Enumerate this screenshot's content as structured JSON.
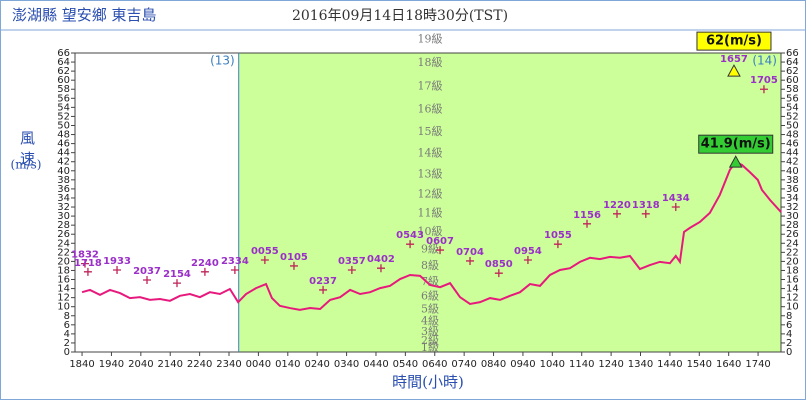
{
  "chart_data": {
    "type": "line",
    "title": "澎湖縣 望安鄉 東吉島",
    "subtitle": "2016年09月14日18時30分(TST)",
    "y_label": "風速",
    "y_unit": "(m/s)",
    "x_label": "時間(小時)",
    "day_boundary": 5.33,
    "day_labels": [
      "(13)",
      "(14)"
    ],
    "before_color": "#ffffff",
    "after_color": "#ccff99",
    "xlim": [
      -0.24,
      23.78
    ],
    "xticks": [
      {
        "value": 0,
        "label": "1840"
      },
      {
        "value": 1,
        "label": "1940"
      },
      {
        "value": 2,
        "label": "2040"
      },
      {
        "value": 3,
        "label": "2140"
      },
      {
        "value": 4,
        "label": "2240"
      },
      {
        "value": 5,
        "label": "2340"
      },
      {
        "value": 6,
        "label": "0040"
      },
      {
        "value": 7,
        "label": "0140"
      },
      {
        "value": 8,
        "label": "0240"
      },
      {
        "value": 9,
        "label": "0340"
      },
      {
        "value": 10,
        "label": "0440"
      },
      {
        "value": 11,
        "label": "0540"
      },
      {
        "value": 12,
        "label": "0640"
      },
      {
        "value": 13,
        "label": "0740"
      },
      {
        "value": 14,
        "label": "0840"
      },
      {
        "value": 15,
        "label": "0940"
      },
      {
        "value": 16,
        "label": "1040"
      },
      {
        "value": 17,
        "label": "1140"
      },
      {
        "value": 18,
        "label": "1240"
      },
      {
        "value": 19,
        "label": "1340"
      },
      {
        "value": 20,
        "label": "1440"
      },
      {
        "value": 21,
        "label": "1540"
      },
      {
        "value": 22,
        "label": "1640"
      },
      {
        "value": 23,
        "label": "1740"
      }
    ],
    "ylim": [
      0,
      66
    ],
    "yticks": [
      0,
      2,
      4,
      6,
      8,
      10,
      12,
      14,
      16,
      18,
      20,
      22,
      24,
      26,
      28,
      30,
      32,
      34,
      36,
      38,
      40,
      42,
      44,
      46,
      48,
      50,
      52,
      54,
      56,
      58,
      60,
      62,
      64,
      66
    ],
    "beaufort_levels": [
      {
        "label": "1級",
        "value": 0.9
      },
      {
        "label": "2級",
        "value": 2.45
      },
      {
        "label": "3級",
        "value": 4.4
      },
      {
        "label": "4級",
        "value": 6.7
      },
      {
        "label": "5級",
        "value": 9.35
      },
      {
        "label": "6級",
        "value": 12.3
      },
      {
        "label": "7級",
        "value": 15.5
      },
      {
        "label": "8級",
        "value": 18.95
      },
      {
        "label": "9級",
        "value": 22.6
      },
      {
        "label": "10級",
        "value": 26.45
      },
      {
        "label": "11級",
        "value": 30.55
      },
      {
        "label": "12級",
        "value": 34.8
      },
      {
        "label": "13級",
        "value": 39.2
      },
      {
        "label": "14級",
        "value": 43.8
      },
      {
        "label": "15級",
        "value": 48.55
      },
      {
        "label": "16級",
        "value": 53.5
      },
      {
        "label": "17級",
        "value": 58.65
      },
      {
        "label": "18級",
        "value": 63.8
      },
      {
        "label": "19級",
        "value": 69
      }
    ],
    "series": [
      {
        "color": "#e8197d",
        "marker": "line",
        "x": [
          0,
          0.27,
          0.61,
          0.95,
          1.29,
          1.63,
          1.97,
          2.31,
          2.65,
          2.99,
          3.33,
          3.67,
          4.01,
          4.35,
          4.69,
          5.03,
          5.31,
          5.58,
          5.92,
          6.26,
          6.46,
          6.73,
          7.07,
          7.41,
          7.76,
          8.1,
          8.44,
          8.78,
          9.12,
          9.46,
          9.8,
          10.14,
          10.48,
          10.82,
          11.16,
          11.5,
          11.84,
          12.18,
          12.52,
          12.86,
          13.2,
          13.54,
          13.88,
          14.22,
          14.56,
          14.9,
          15.24,
          15.58,
          15.92,
          16.26,
          16.6,
          16.94,
          17.28,
          17.62,
          17.96,
          18.3,
          18.64,
          18.98,
          19.32,
          19.66,
          20,
          20.2,
          20.34,
          20.48,
          20.68,
          21.02,
          21.36,
          21.7,
          22.04,
          22.24,
          22.45,
          22.72,
          22.99,
          23.13,
          23.4,
          23.78
        ],
        "values": [
          13.2,
          13.7,
          12.6,
          13.7,
          13,
          11.9,
          12.1,
          11.5,
          11.7,
          11.3,
          12.4,
          12.8,
          12.1,
          13.2,
          12.8,
          13.9,
          11,
          12.8,
          14.1,
          15,
          11.9,
          10.2,
          9.7,
          9.3,
          9.7,
          9.5,
          11.5,
          12.1,
          13.7,
          12.8,
          13.2,
          14.1,
          14.6,
          16.1,
          17,
          16.8,
          14.8,
          14.3,
          15.2,
          12.1,
          10.6,
          11,
          11.9,
          11.5,
          12.4,
          13.2,
          15,
          14.6,
          17,
          18.1,
          18.5,
          19.9,
          20.8,
          20.5,
          21,
          20.8,
          21.2,
          18.3,
          19.2,
          19.9,
          19.6,
          21.2,
          19.9,
          26.5,
          27.4,
          28.7,
          30.7,
          34.7,
          40.2,
          41.9,
          41.3,
          39.7,
          38,
          35.8,
          33.6,
          30.9
        ]
      },
      {
        "color": "#c0245a",
        "marker": "+",
        "x": [
          0.1,
          0.2,
          1.19,
          2.21,
          3.23,
          4.18,
          5.2,
          6.22,
          7.21,
          8.2,
          9.18,
          10.17,
          11.16,
          12.18,
          13.2,
          14.18,
          15.17,
          16.19,
          17.18,
          18.2,
          19.18,
          20.2,
          23.2
        ],
        "values": [
          19.5,
          17.7,
          18.1,
          15.9,
          15.2,
          17.7,
          18.1,
          20.3,
          19,
          13.7,
          18.1,
          18.5,
          23.8,
          22.5,
          20.1,
          17.4,
          20.3,
          23.8,
          28.3,
          30.5,
          30.5,
          32,
          58
        ],
        "point_labels": [
          "1832",
          "1718",
          "1933",
          "2037",
          "2154",
          "2240",
          "2334",
          "0055",
          "0105",
          "0237",
          "0357",
          "0402",
          "0543",
          "0607",
          "0704",
          "0850",
          "0954",
          "1055",
          "1156",
          "1220",
          "1318",
          "1434",
          "1705"
        ]
      }
    ],
    "annotations": [
      {
        "x": 22.18,
        "value": 62,
        "value_label": "62(m/s)",
        "point_label": "1657",
        "color": "#ffff00"
      },
      {
        "x": 22.24,
        "value": 41.9,
        "value_label": "41.9(m/s)",
        "color": "#33cc33"
      }
    ]
  }
}
